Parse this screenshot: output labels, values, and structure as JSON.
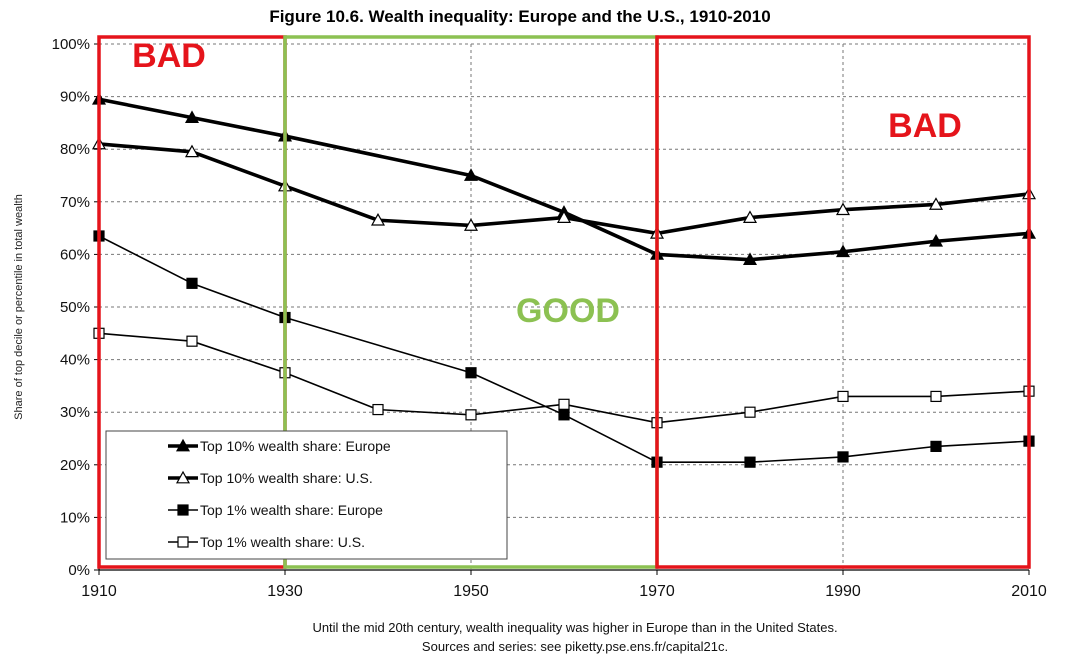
{
  "chart_data": {
    "type": "line",
    "title": "Figure 10.6. Wealth inequality:  Europe and the U.S., 1910-2010",
    "ylabel": "Share of top decile or percentile in total wealth",
    "xlabel": "",
    "xlim": [
      1910,
      2010
    ],
    "ylim": [
      0,
      100
    ],
    "x_ticks": [
      "1910",
      "1930",
      "1950",
      "1970",
      "1990",
      "2010"
    ],
    "y_ticks": [
      "0%",
      "10%",
      "20%",
      "30%",
      "40%",
      "50%",
      "60%",
      "70%",
      "80%",
      "90%",
      "100%"
    ],
    "grid": "dashed",
    "legend_position": "bottom-left",
    "series": [
      {
        "name": "Top 10% wealth share: Europe",
        "marker": "filled-triangle",
        "line": "thick",
        "x": [
          1910,
          1920,
          1930,
          1950,
          1960,
          1970,
          1980,
          1990,
          2000,
          2010
        ],
        "values": [
          89.5,
          86,
          82.5,
          75,
          68,
          60,
          59,
          60.5,
          62.5,
          64
        ]
      },
      {
        "name": "Top 10% wealth share: U.S.",
        "marker": "open-triangle",
        "line": "thick",
        "x": [
          1910,
          1920,
          1930,
          1940,
          1950,
          1960,
          1970,
          1980,
          1990,
          2000,
          2010
        ],
        "values": [
          81,
          79.5,
          73,
          66.5,
          65.5,
          67,
          64,
          67,
          68.5,
          69.5,
          71.5
        ]
      },
      {
        "name": "Top 1% wealth share: Europe",
        "marker": "filled-square",
        "line": "thin",
        "x": [
          1910,
          1920,
          1930,
          1950,
          1960,
          1970,
          1980,
          1990,
          2000,
          2010
        ],
        "values": [
          63.5,
          54.5,
          48,
          37.5,
          29.5,
          20.5,
          20.5,
          21.5,
          23.5,
          24.5
        ]
      },
      {
        "name": "Top 1% wealth share: U.S.",
        "marker": "open-square",
        "line": "thin",
        "x": [
          1910,
          1920,
          1930,
          1940,
          1950,
          1960,
          1970,
          1980,
          1990,
          2000,
          2010
        ],
        "values": [
          45,
          43.5,
          37.5,
          30.5,
          29.5,
          31.5,
          28,
          30,
          33,
          33,
          34
        ]
      }
    ],
    "annotations": [
      {
        "label": "BAD",
        "color": "#e5141b",
        "x_range": [
          1910,
          1930
        ]
      },
      {
        "label": "GOOD",
        "color": "#8cc152",
        "x_range": [
          1930,
          1970
        ]
      },
      {
        "label": "BAD",
        "color": "#e5141b",
        "x_range": [
          1970,
          2010
        ]
      }
    ],
    "caption": [
      "Until the mid 20th century, wealth inequality was higher in Europe than in the United States.",
      "Sources and series: see piketty.pse.ens.fr/capital21c."
    ]
  }
}
